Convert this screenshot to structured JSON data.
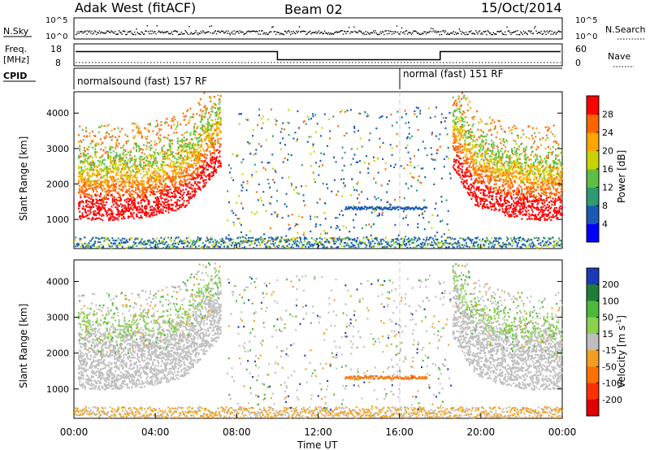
{
  "header": {
    "station": "Adak West (fitACF)",
    "beam": "Beam 02",
    "date": "15/Oct/2014"
  },
  "strip": {
    "nsky_label": "N.Sky",
    "nsearch_label": "N.Search",
    "freq_label": "Freq.",
    "freq_unit": "[MHz]",
    "nave_label": "Nave",
    "cpid_label": "CPID",
    "sky_ticks": [
      "10^5",
      "10^0"
    ],
    "search_ticks": [
      "10^5",
      "10^0"
    ],
    "freq_ticks": [
      "18",
      "8"
    ],
    "nave_ticks": [
      "60",
      "0"
    ],
    "cpid_segments": [
      {
        "start_hour": 0,
        "end_hour": 16,
        "label": "normalsound (fast) 157 RF"
      },
      {
        "start_hour": 16,
        "end_hour": 24,
        "label": "normal (fast) 151 RF"
      }
    ],
    "freq_steps": [
      {
        "start_hour": 0,
        "end_hour": 10,
        "mhz": 14.5
      },
      {
        "start_hour": 10,
        "end_hour": 18,
        "mhz": 10.8
      },
      {
        "start_hour": 18,
        "end_hour": 24,
        "mhz": 14.5
      }
    ]
  },
  "chart_data": [
    {
      "type": "heatmap",
      "ylabel": "Slant Range [km]",
      "xlabel": "Time UT",
      "x_range_hours": [
        0,
        24
      ],
      "ylim": [
        180,
        4600
      ],
      "y_ticks": [
        "1000",
        "2000",
        "3000",
        "4000"
      ],
      "colorbar_label": "Power [dB]",
      "colorbar_ticks": [
        "4",
        "8",
        "12",
        "16",
        "20",
        "24",
        "28"
      ],
      "colors": [
        "#0000ff",
        "#1a5ab4",
        "#2f9a72",
        "#5fbe46",
        "#c8d400",
        "#ffa500",
        "#ff6400",
        "#ff0000"
      ]
    },
    {
      "type": "heatmap",
      "ylabel": "Slant Range [km]",
      "xlabel": "Time UT",
      "x_range_hours": [
        0,
        24
      ],
      "ylim": [
        180,
        4600
      ],
      "y_ticks": [
        "1000",
        "2000",
        "3000",
        "4000"
      ],
      "colorbar_label": "Velocity [m s",
      "colorbar_sup": "-1",
      "colorbar_close": "]",
      "colorbar_ticks": [
        "200",
        "100",
        "50",
        "15",
        "-15",
        "-50",
        "-100",
        "-200"
      ],
      "colors": [
        "#1c3ab8",
        "#1e7e38",
        "#4cb83c",
        "#8ad24e",
        "#bebebe",
        "#f0a020",
        "#ff7000",
        "#ff3000",
        "#e00000"
      ]
    }
  ],
  "time_axis": {
    "ticks": [
      "00:00",
      "04:00",
      "08:00",
      "12:00",
      "16:00",
      "20:00",
      "00:00"
    ],
    "label": "Time UT"
  }
}
